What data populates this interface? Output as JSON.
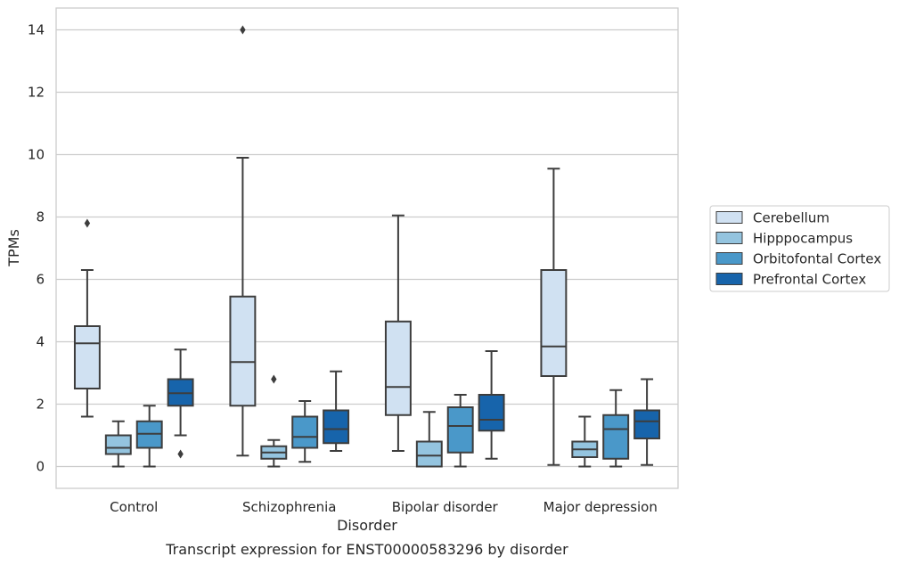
{
  "chart_data": {
    "type": "box",
    "xlabel": "Disorder",
    "ylabel": "TPMs",
    "caption": "Transcript expression for ENST00000583296 by disorder",
    "ylim": [
      -0.7,
      14.7
    ],
    "yticks": [
      "0",
      "2",
      "4",
      "6",
      "8",
      "10",
      "12",
      "14"
    ],
    "grid": true,
    "legend_position": "right",
    "categories": [
      "Control",
      "Schizophrenia",
      "Bipolar disorder",
      "Major depression"
    ],
    "series": [
      {
        "name": "Cerebellum",
        "color": "#d0e1f2",
        "boxes": [
          {
            "whislo": 1.6,
            "q1": 2.5,
            "med": 3.95,
            "q3": 4.5,
            "whishi": 6.3,
            "fliers": [
              7.8
            ]
          },
          {
            "whislo": 0.35,
            "q1": 1.95,
            "med": 3.35,
            "q3": 5.45,
            "whishi": 9.9,
            "fliers": [
              14.0
            ]
          },
          {
            "whislo": 0.5,
            "q1": 1.65,
            "med": 2.55,
            "q3": 4.65,
            "whishi": 8.05,
            "fliers": []
          },
          {
            "whislo": 0.05,
            "q1": 2.9,
            "med": 3.85,
            "q3": 6.3,
            "whishi": 9.55,
            "fliers": []
          }
        ]
      },
      {
        "name": "Hipppocampus",
        "color": "#94c4df",
        "boxes": [
          {
            "whislo": 0.0,
            "q1": 0.4,
            "med": 0.6,
            "q3": 1.0,
            "whishi": 1.45,
            "fliers": []
          },
          {
            "whislo": 0.0,
            "q1": 0.25,
            "med": 0.45,
            "q3": 0.65,
            "whishi": 0.85,
            "fliers": [
              2.8
            ]
          },
          {
            "whislo": 0.0,
            "q1": 0.0,
            "med": 0.35,
            "q3": 0.8,
            "whishi": 1.75,
            "fliers": []
          },
          {
            "whislo": 0.0,
            "q1": 0.3,
            "med": 0.55,
            "q3": 0.8,
            "whishi": 1.6,
            "fliers": []
          }
        ]
      },
      {
        "name": "Orbitofontal Cortex",
        "color": "#4a98c9",
        "boxes": [
          {
            "whislo": 0.0,
            "q1": 0.6,
            "med": 1.05,
            "q3": 1.45,
            "whishi": 1.95,
            "fliers": []
          },
          {
            "whislo": 0.15,
            "q1": 0.6,
            "med": 0.95,
            "q3": 1.6,
            "whishi": 2.1,
            "fliers": []
          },
          {
            "whislo": 0.0,
            "q1": 0.45,
            "med": 1.3,
            "q3": 1.9,
            "whishi": 2.3,
            "fliers": []
          },
          {
            "whislo": 0.0,
            "q1": 0.25,
            "med": 1.2,
            "q3": 1.65,
            "whishi": 2.45,
            "fliers": []
          }
        ]
      },
      {
        "name": "Prefrontal Cortex",
        "color": "#1764ab",
        "boxes": [
          {
            "whislo": 1.0,
            "q1": 1.95,
            "med": 2.35,
            "q3": 2.8,
            "whishi": 3.75,
            "fliers": [
              0.4
            ]
          },
          {
            "whislo": 0.5,
            "q1": 0.75,
            "med": 1.2,
            "q3": 1.8,
            "whishi": 3.05,
            "fliers": []
          },
          {
            "whislo": 0.25,
            "q1": 1.15,
            "med": 1.5,
            "q3": 2.3,
            "whishi": 3.7,
            "fliers": []
          },
          {
            "whislo": 0.05,
            "q1": 0.9,
            "med": 1.45,
            "q3": 1.8,
            "whishi": 2.8,
            "fliers": []
          }
        ]
      }
    ]
  }
}
